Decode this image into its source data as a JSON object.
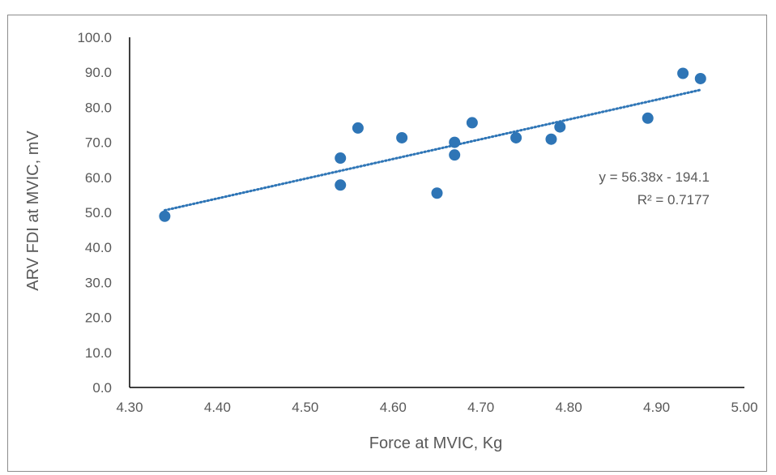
{
  "chart_data": {
    "type": "scatter",
    "title": "",
    "xlabel": "Force at MVIC, Kg",
    "ylabel": "ARV FDI at MVIC, mV",
    "xlim": [
      4.3,
      5.0
    ],
    "ylim": [
      0.0,
      100.0
    ],
    "x_ticks": [
      "4.30",
      "4.40",
      "4.50",
      "4.60",
      "4.70",
      "4.80",
      "4.90",
      "5.00"
    ],
    "y_ticks": [
      "0.0",
      "10.0",
      "20.0",
      "30.0",
      "40.0",
      "50.0",
      "60.0",
      "70.0",
      "80.0",
      "90.0",
      "100.0"
    ],
    "grid": false,
    "marker_color": "#2e75b6",
    "trendline_color": "#2e75b6",
    "series": [
      {
        "points": [
          {
            "x": 4.34,
            "y": 48.9
          },
          {
            "x": 4.54,
            "y": 65.5
          },
          {
            "x": 4.54,
            "y": 57.8
          },
          {
            "x": 4.56,
            "y": 74.1
          },
          {
            "x": 4.61,
            "y": 71.3
          },
          {
            "x": 4.65,
            "y": 55.5
          },
          {
            "x": 4.67,
            "y": 70.0
          },
          {
            "x": 4.67,
            "y": 66.4
          },
          {
            "x": 4.69,
            "y": 75.6
          },
          {
            "x": 4.74,
            "y": 71.3
          },
          {
            "x": 4.78,
            "y": 70.9
          },
          {
            "x": 4.79,
            "y": 74.4
          },
          {
            "x": 4.89,
            "y": 76.9
          },
          {
            "x": 4.93,
            "y": 89.7
          },
          {
            "x": 4.95,
            "y": 88.2
          }
        ]
      }
    ],
    "trendline": {
      "type": "linear",
      "slope": 56.38,
      "intercept": -194.1,
      "x_range": [
        4.34,
        4.95
      ],
      "equation_label": "y = 56.38x - 194.1",
      "r2_label": "R² = 0.7177"
    }
  }
}
